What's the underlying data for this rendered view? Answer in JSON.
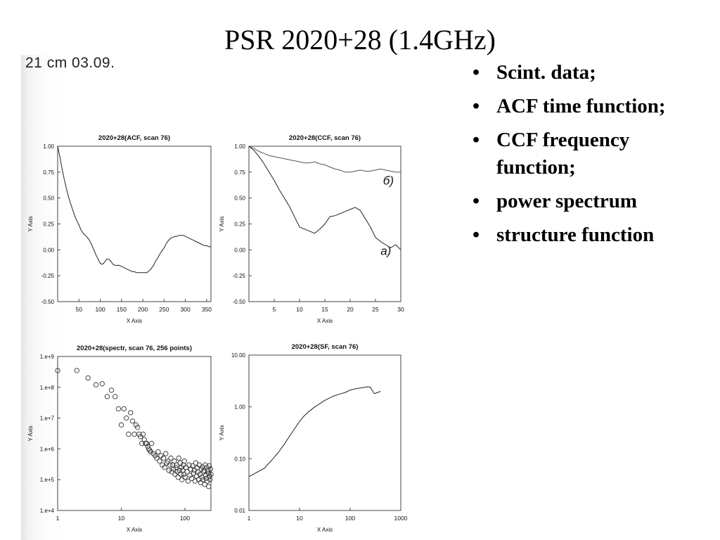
{
  "slide": {
    "title": "PSR 2020+28 (1.4GHz)",
    "scan_note": "21 cm   03.09.",
    "bullet_glyph": "•",
    "bullets": [
      "Scint. data;",
      "ACF time function;",
      "CCF frequency function;",
      "power spectrum",
      "structure function"
    ]
  },
  "chart_data": [
    {
      "type": "line",
      "title": "2020+28(ACF, scan 76)",
      "xlabel": "X Axis",
      "ylabel": "Y Axis",
      "xlim": [
        0,
        360
      ],
      "ylim": [
        -0.5,
        1.0
      ],
      "xticks": [
        "50",
        "100",
        "150",
        "200",
        "250",
        "300",
        "350"
      ],
      "yticks": [
        "-0.50",
        "-0.25",
        "0.00",
        "0.25",
        "0.50",
        "0.75",
        "1.00"
      ],
      "series": [
        {
          "x": [
            0,
            5,
            10,
            15,
            20,
            25,
            30,
            35,
            40,
            45,
            50,
            55,
            60,
            65,
            70,
            75,
            80,
            85,
            90,
            95,
            100,
            105,
            110,
            115,
            120,
            125,
            130,
            135,
            140,
            145,
            150,
            155,
            160,
            165,
            170,
            175,
            180,
            185,
            190,
            195,
            200,
            205,
            210,
            215,
            220,
            225,
            230,
            235,
            240,
            245,
            250,
            255,
            260,
            265,
            270,
            275,
            280,
            285,
            290,
            295,
            300,
            305,
            310,
            315,
            320,
            325,
            330,
            335,
            340,
            345,
            350,
            355,
            360
          ],
          "y": [
            1.0,
            0.9,
            0.79,
            0.69,
            0.6,
            0.52,
            0.45,
            0.39,
            0.33,
            0.28,
            0.24,
            0.19,
            0.16,
            0.14,
            0.12,
            0.09,
            0.05,
            0.0,
            -0.05,
            -0.09,
            -0.13,
            -0.14,
            -0.12,
            -0.09,
            -0.09,
            -0.11,
            -0.14,
            -0.15,
            -0.15,
            -0.15,
            -0.16,
            -0.17,
            -0.18,
            -0.19,
            -0.2,
            -0.21,
            -0.21,
            -0.22,
            -0.22,
            -0.22,
            -0.22,
            -0.22,
            -0.22,
            -0.2,
            -0.18,
            -0.15,
            -0.11,
            -0.08,
            -0.04,
            -0.01,
            0.02,
            0.06,
            0.09,
            0.11,
            0.12,
            0.13,
            0.13,
            0.14,
            0.14,
            0.14,
            0.13,
            0.12,
            0.11,
            0.1,
            0.09,
            0.08,
            0.07,
            0.06,
            0.05,
            0.04,
            0.04,
            0.03,
            0.03
          ]
        }
      ]
    },
    {
      "type": "line",
      "title": "2020+28(CCF, scan 76)",
      "xlabel": "X Axis",
      "ylabel": "Y Axis",
      "xlim": [
        0,
        30
      ],
      "ylim": [
        -0.5,
        1.0
      ],
      "xticks": [
        "5",
        "10",
        "15",
        "20",
        "25",
        "30"
      ],
      "yticks": [
        "-0.50",
        "-0.25",
        "0.00",
        "0.25",
        "0.50",
        "0.75",
        "1.00"
      ],
      "annotations": [
        "б)",
        "a)"
      ],
      "series": [
        {
          "name": "б)",
          "x": [
            0,
            1,
            2,
            3,
            4,
            5,
            6,
            7,
            8,
            9,
            10,
            11,
            12,
            13,
            14,
            15,
            16,
            17,
            18,
            19,
            20,
            21,
            22,
            23,
            24,
            25,
            26,
            27,
            28,
            29,
            30
          ],
          "y": [
            1.0,
            0.98,
            0.95,
            0.93,
            0.91,
            0.9,
            0.89,
            0.88,
            0.87,
            0.86,
            0.85,
            0.84,
            0.84,
            0.85,
            0.83,
            0.82,
            0.8,
            0.78,
            0.77,
            0.75,
            0.75,
            0.76,
            0.77,
            0.76,
            0.76,
            0.77,
            0.78,
            0.77,
            0.76,
            0.75,
            0.75
          ]
        },
        {
          "name": "a)",
          "x": [
            0,
            1,
            2,
            3,
            4,
            5,
            6,
            7,
            8,
            9,
            10,
            11,
            12,
            13,
            14,
            15,
            16,
            17,
            18,
            19,
            20,
            21,
            22,
            23,
            24,
            25,
            26,
            27,
            28,
            29,
            30
          ],
          "y": [
            1.0,
            0.96,
            0.9,
            0.83,
            0.75,
            0.67,
            0.58,
            0.5,
            0.42,
            0.32,
            0.22,
            0.2,
            0.18,
            0.16,
            0.2,
            0.25,
            0.32,
            0.33,
            0.35,
            0.37,
            0.39,
            0.41,
            0.38,
            0.3,
            0.22,
            0.12,
            0.08,
            0.05,
            0.02,
            0.05,
            0.0
          ]
        }
      ]
    },
    {
      "type": "scatter",
      "title": "2020+28(spectr, scan 76, 256 points)",
      "xlabel": "X Axis",
      "ylabel": "Y Axis",
      "xscale": "log",
      "yscale": "log",
      "xlim": [
        1,
        256
      ],
      "ylim": [
        10000,
        1000000000
      ],
      "xticks": [
        "1",
        "10",
        "100"
      ],
      "yticks": [
        "1.e+4",
        "1.e+5",
        "1.e+6",
        "1.e+7",
        "1.e+8",
        "1.e+9"
      ],
      "series": [
        {
          "x": [
            1,
            2,
            3,
            4,
            5,
            6,
            7,
            8,
            9,
            10,
            11,
            12,
            13,
            14,
            15,
            16,
            17,
            18,
            19,
            20,
            21,
            22,
            23,
            24,
            25,
            26,
            27,
            28,
            29,
            30,
            32,
            34,
            36,
            38,
            40,
            42,
            44,
            46,
            48,
            50,
            52,
            54,
            56,
            58,
            60,
            62,
            64,
            66,
            68,
            70,
            72,
            74,
            76,
            78,
            80,
            82,
            84,
            86,
            88,
            90,
            92,
            94,
            96,
            98,
            100,
            104,
            108,
            112,
            116,
            120,
            124,
            128,
            132,
            136,
            140,
            144,
            148,
            152,
            156,
            160,
            164,
            168,
            172,
            176,
            180,
            184,
            188,
            192,
            196,
            200,
            204,
            208,
            212,
            216,
            220,
            224,
            228,
            232,
            236,
            240,
            244,
            248,
            252,
            256
          ],
          "y": [
            350000000,
            350000000,
            200000000,
            120000000,
            130000000,
            50000000,
            80000000,
            50000000,
            20000000,
            6000000,
            20000000,
            10000000,
            3000000,
            15000000,
            8000000,
            3000000,
            6000000,
            5000000,
            3000000,
            2500000,
            1500000,
            3000000,
            2000000,
            1500000,
            1500000,
            1200000,
            1000000,
            900000,
            800000,
            1500000,
            700000,
            600000,
            500000,
            800000,
            400000,
            600000,
            300000,
            500000,
            250000,
            700000,
            350000,
            400000,
            200000,
            300000,
            500000,
            180000,
            300000,
            220000,
            400000,
            150000,
            250000,
            300000,
            180000,
            120000,
            500000,
            200000,
            350000,
            150000,
            250000,
            100000,
            200000,
            300000,
            150000,
            400000,
            120000,
            250000,
            180000,
            90000,
            300000,
            140000,
            220000,
            110000,
            280000,
            160000,
            200000,
            90000,
            350000,
            130000,
            240000,
            180000,
            100000,
            300000,
            150000,
            80000,
            220000,
            120000,
            260000,
            100000,
            180000,
            200000,
            70000,
            300000,
            140000,
            110000,
            250000,
            90000,
            200000,
            160000,
            60000,
            280000,
            130000,
            100000,
            220000,
            150000
          ]
        }
      ]
    },
    {
      "type": "line",
      "title": "2020+28(SF, scan 76)",
      "xlabel": "X Axis",
      "ylabel": "Y Axis",
      "xscale": "log",
      "yscale": "log",
      "xlim": [
        1,
        1000
      ],
      "ylim": [
        0.01,
        10
      ],
      "xticks": [
        "1",
        "10",
        "100",
        "1000"
      ],
      "yticks": [
        "0.01",
        "0.10",
        "1.00",
        "10.00"
      ],
      "series": [
        {
          "x": [
            1,
            2,
            3,
            4,
            5,
            6,
            8,
            10,
            12,
            15,
            20,
            25,
            30,
            40,
            50,
            60,
            80,
            100,
            120,
            150,
            180,
            200,
            220,
            250,
            280,
            300,
            350,
            400
          ],
          "y": [
            0.045,
            0.065,
            0.1,
            0.14,
            0.19,
            0.25,
            0.38,
            0.52,
            0.65,
            0.8,
            1.0,
            1.15,
            1.3,
            1.5,
            1.65,
            1.75,
            1.9,
            2.1,
            2.2,
            2.3,
            2.35,
            2.4,
            2.45,
            2.4,
            2.0,
            1.8,
            1.9,
            2.0
          ]
        }
      ]
    }
  ]
}
